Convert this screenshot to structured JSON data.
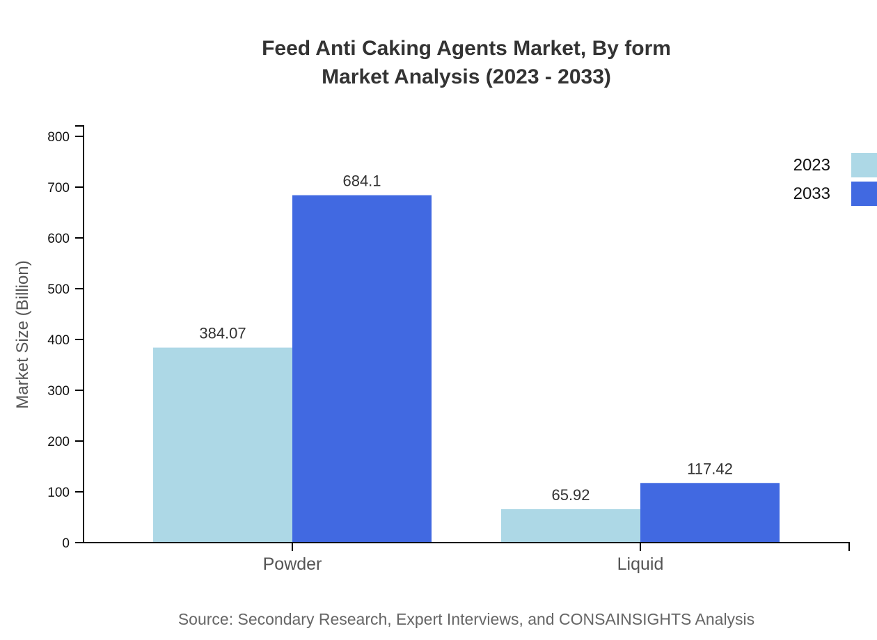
{
  "title": {
    "line1": "Feed Anti Caking Agents Market, By form",
    "line2": "Market Analysis (2023 - 2033)"
  },
  "source": {
    "text": "Source: Secondary Research, Expert Interviews, and CONSAINSIGHTS Analysis"
  },
  "chart_data": {
    "type": "bar",
    "grouped": true,
    "title": "Feed Anti Caking Agents Market, By form Market Analysis (2023 - 2033)",
    "title_lines": [
      "Feed Anti Caking Agents Market, By form",
      "Market Analysis (2023 - 2033)"
    ],
    "xlabel": "",
    "ylabel": "Market Size (Billion)",
    "categories": [
      "Powder",
      "Liquid"
    ],
    "series": [
      {
        "name": "2023",
        "color": "#ADD8E6",
        "values": [
          384.07,
          65.92
        ],
        "labels": [
          "384.07",
          "65.92"
        ]
      },
      {
        "name": "2033",
        "color": "#4169E1",
        "values": [
          684.1,
          117.42
        ],
        "labels": [
          "684.1",
          "117.42"
        ]
      }
    ],
    "ylim": [
      0,
      800
    ],
    "ytick_step": 100,
    "yticks": [
      0,
      100,
      200,
      300,
      400,
      500,
      600,
      700,
      800
    ],
    "grid": false,
    "legend_position": "top-right",
    "colors": {
      "axis": "#000000",
      "tick_label": "#111111",
      "category_label": "#555555",
      "value_label": "#333333",
      "axis_title": "#555555",
      "title": "#333333",
      "source": "#666666",
      "background": "#ffffff"
    }
  }
}
